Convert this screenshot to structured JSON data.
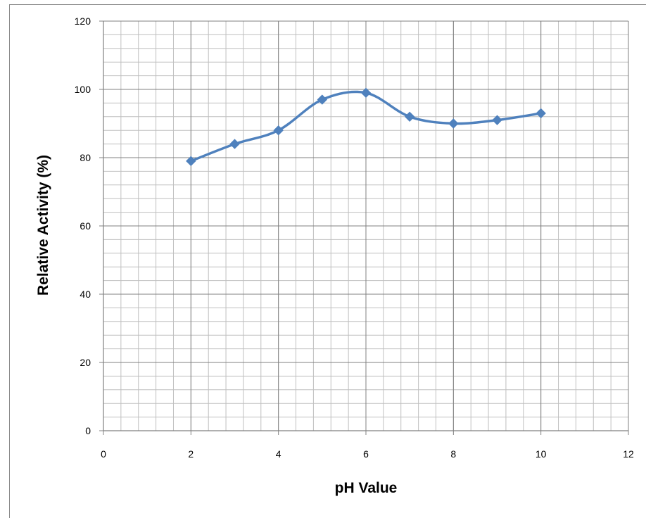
{
  "chart_data": {
    "type": "line",
    "title": "",
    "xlabel": "pH Value",
    "ylabel": "Relative Activity (%)",
    "xlim": [
      0,
      12
    ],
    "ylim": [
      0,
      120
    ],
    "x_ticks": [
      0,
      2,
      4,
      6,
      8,
      10,
      12
    ],
    "y_ticks": [
      0,
      20,
      40,
      60,
      80,
      100,
      120
    ],
    "x_minor_step": 0.4,
    "y_minor_step": 4,
    "grid": true,
    "legend": "none",
    "smooth": true,
    "marker": "diamond",
    "series": [
      {
        "x": [
          2,
          3,
          4,
          5,
          6,
          7,
          8,
          9,
          10
        ],
        "values": [
          79,
          84,
          88,
          97,
          99,
          92,
          90,
          91,
          93
        ],
        "color": "#4f81bd"
      }
    ],
    "colors": {
      "major_grid": "#808080",
      "minor_grid": "#bfbfbf",
      "axis": "#808080"
    }
  }
}
